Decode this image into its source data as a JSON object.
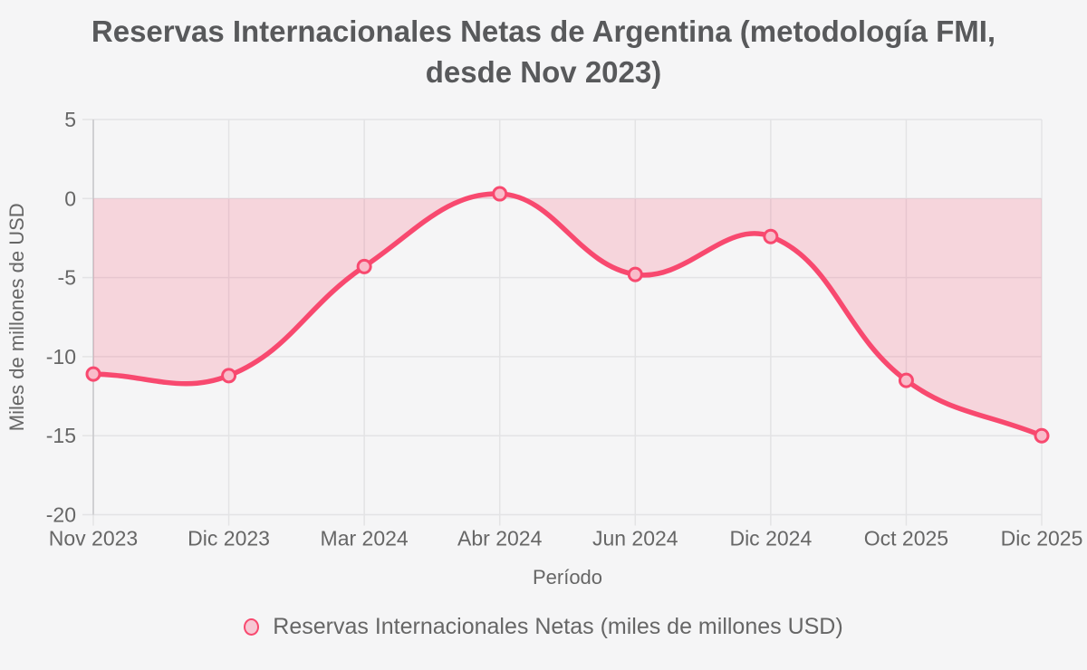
{
  "ui": {
    "background": "#f5f5f6",
    "title_line1": "Reservas Internacionales Netas de Argentina (metodología FMI,",
    "title_line2": "desde Nov 2023)",
    "legend_label": "Reservas Internacionales Netas (miles de millones USD)"
  },
  "chart_data": {
    "type": "line",
    "title": "Reservas Internacionales Netas de Argentina (metodología FMI, desde Nov 2023)",
    "categories": [
      "Nov 2023",
      "Dic 2023",
      "Mar 2024",
      "Abr 2024",
      "Jun 2024",
      "Dic 2024",
      "Oct 2025",
      "Dic 2025"
    ],
    "series": [
      {
        "name": "Reservas Internacionales Netas (miles de millones USD)",
        "values": [
          -11.1,
          -11.2,
          -4.3,
          0.3,
          -4.8,
          -2.4,
          -11.5,
          -15.0
        ]
      }
    ],
    "xlabel": "Período",
    "ylabel": "Miles de millones de USD",
    "ylim": [
      -20,
      5
    ],
    "yticks": [
      5,
      0,
      -5,
      -10,
      -15,
      -20
    ],
    "grid": true,
    "legend_position": "bottom",
    "smooth": true,
    "tension": 0.4,
    "fill_origin": 0,
    "colors": {
      "line": "#f8496f",
      "area_fill": "#f8496f",
      "area_opacity": 0.19,
      "point_fill": "#f9bcca",
      "grid": "#e3e3e5",
      "axis_border": "#c7c7ca",
      "tick_text": "#666666",
      "axis_title_text": "#666666",
      "title_text": "#58595b"
    }
  }
}
